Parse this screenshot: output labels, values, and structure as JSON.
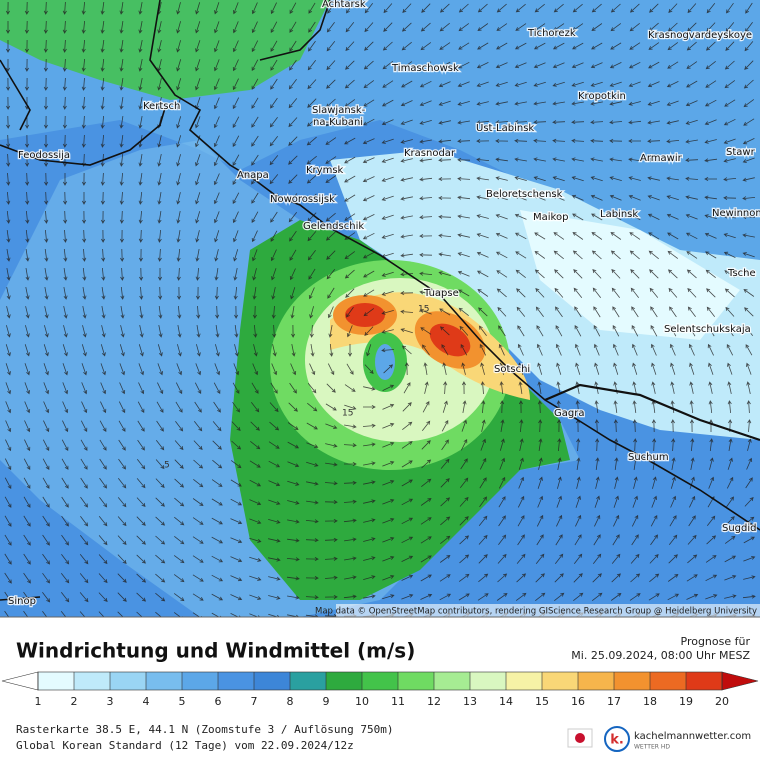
{
  "map": {
    "cities": [
      "Achtarsk",
      "Tichorezk",
      "Krasnogvardeyskoye",
      "Timaschowsk",
      "Kropotkin",
      "Kertsch",
      "Slawjansk-",
      "na-Kubani",
      "Ust-Labinsk",
      "Feodossija",
      "Krasnodar",
      "Armawir",
      "Stawr",
      "Krymsk",
      "Anapa",
      "Beloretschensk",
      "Noworossijsk",
      "Maikop",
      "Labinsk",
      "Newinnom",
      "Gelendschik",
      "Tsche",
      "Tuapse",
      "Selentschukskaja",
      "Sotschi",
      "Gagra",
      "Suchum",
      "Sugdid",
      "Sinop"
    ],
    "contour_labels": [
      "15",
      "15",
      "5"
    ],
    "attribution": "Map data © OpenStreetMap contributors, rendering GIScience Research Group @ Heidelberg University"
  },
  "legend": {
    "title": "Windrichtung und Windmittel (m/s)",
    "ticks": [
      1,
      2,
      3,
      4,
      5,
      6,
      7,
      8,
      9,
      10,
      11,
      12,
      13,
      14,
      15,
      16,
      17,
      18,
      19,
      20
    ],
    "colors": [
      "#e4fbff",
      "#bfeafa",
      "#9ad5f4",
      "#78bdee",
      "#5ca7e8",
      "#4a93e2",
      "#3d86d8",
      "#2aa0a0",
      "#2eaa3e",
      "#43c34a",
      "#6fdb62",
      "#a6ec93",
      "#d9f7c0",
      "#f6f2a6",
      "#f9d777",
      "#f6b54c",
      "#f2922f",
      "#ec6a22",
      "#df3a18"
    ],
    "under_color": "#ffffff",
    "over_color": "#c00c0c"
  },
  "forecast": {
    "label": "Prognose für",
    "time": "Mi. 25.09.2024, 08:00 Uhr MESZ"
  },
  "footer": {
    "line1": "Rasterkarte 38.5 E, 44.1 N (Zoomstufe 3 / Auflösung 750m)",
    "line2": "Global Korean Standard (12 Tage) vom 22.09.2024/12z"
  },
  "brand": {
    "name": "kachelmannwetter.com",
    "sub": "WETTER HD"
  }
}
